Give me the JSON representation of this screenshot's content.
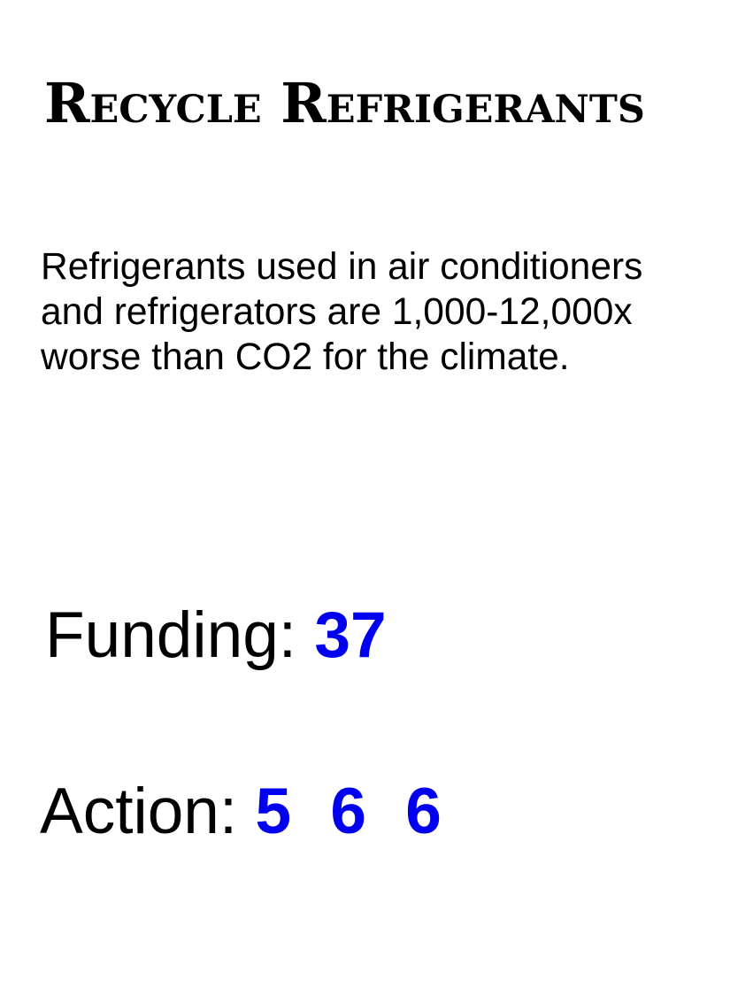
{
  "card": {
    "title": "Recycle Refrigerants",
    "description": "Refrigerants used in air conditioners and refrigerators are 1,000-12,000x worse than CO2 for the climate.",
    "funding": {
      "label": "Funding:",
      "value": "37"
    },
    "action": {
      "label": "Action:",
      "values": [
        "5",
        "6",
        "6"
      ]
    }
  },
  "colors": {
    "text": "#000000",
    "accent": "#0000ee",
    "background": "#ffffff"
  }
}
